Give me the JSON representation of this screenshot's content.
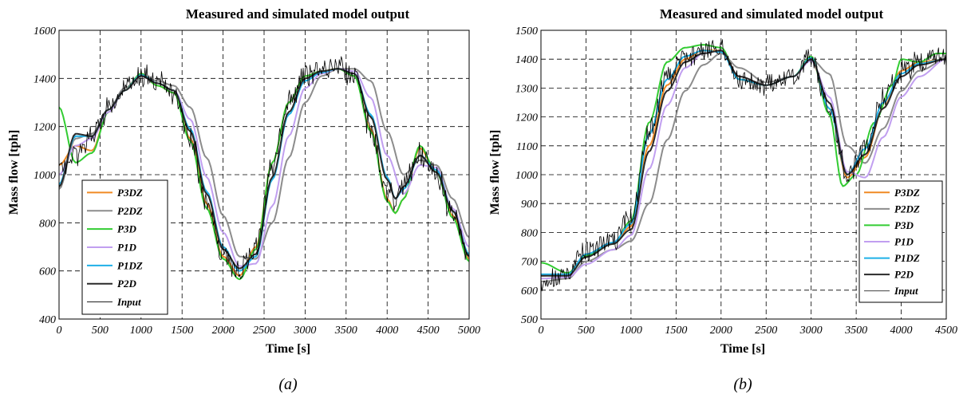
{
  "chart_data": [
    {
      "type": "line",
      "title": "Measured and simulated model output",
      "xlabel": "Time [s]",
      "ylabel": "Mass flow [tph]",
      "caption": "(a)",
      "xlim": [
        0,
        5000
      ],
      "ylim": [
        400,
        1600
      ],
      "xticks": [
        "0",
        "500",
        "1000",
        "1500",
        "2000",
        "2500",
        "3000",
        "3500",
        "4000",
        "4500",
        "5000"
      ],
      "yticks": [
        "400",
        "600",
        "800",
        "1000",
        "1200",
        "1400",
        "1600"
      ],
      "grid": true,
      "legend_position": "bottom-left",
      "series": [
        {
          "name": "P3DZ",
          "color": "#f08a24",
          "width": 2,
          "x": [
            0,
            200,
            400,
            600,
            800,
            1000,
            1200,
            1400,
            1600,
            1800,
            2000,
            2200,
            2400,
            2600,
            2800,
            3000,
            3200,
            3400,
            3600,
            3800,
            4000,
            4100,
            4200,
            4400,
            4600,
            4800,
            5000
          ],
          "y": [
            1040,
            1120,
            1100,
            1260,
            1350,
            1420,
            1370,
            1340,
            1150,
            880,
            660,
            580,
            700,
            1050,
            1300,
            1410,
            1430,
            1440,
            1410,
            1190,
            900,
            840,
            900,
            1110,
            1010,
            830,
            650
          ]
        },
        {
          "name": "P2DZ",
          "color": "#8c8c8c",
          "width": 2,
          "x": [
            0,
            200,
            400,
            600,
            800,
            1000,
            1200,
            1400,
            1600,
            1800,
            2000,
            2200,
            2400,
            2600,
            2800,
            3000,
            3200,
            3400,
            3600,
            3800,
            4000,
            4200,
            4400,
            4600,
            4800,
            5000
          ],
          "y": [
            940,
            1150,
            1170,
            1270,
            1360,
            1410,
            1390,
            1370,
            1280,
            1070,
            830,
            660,
            650,
            800,
            1070,
            1300,
            1410,
            1440,
            1440,
            1390,
            1180,
            1000,
            1060,
            1040,
            900,
            740
          ]
        },
        {
          "name": "P3D",
          "color": "#33cc33",
          "width": 2,
          "x": [
            0,
            200,
            400,
            600,
            800,
            1000,
            1200,
            1400,
            1600,
            1800,
            2000,
            2200,
            2400,
            2600,
            2800,
            3000,
            3200,
            3400,
            3600,
            3800,
            4000,
            4100,
            4200,
            4400,
            4600,
            4800,
            5000
          ],
          "y": [
            1280,
            1050,
            1090,
            1260,
            1350,
            1420,
            1370,
            1340,
            1140,
            860,
            650,
            565,
            690,
            1050,
            1300,
            1410,
            1430,
            1440,
            1410,
            1180,
            890,
            840,
            900,
            1120,
            1010,
            820,
            640
          ]
        },
        {
          "name": "P1D",
          "color": "#c19ff0",
          "width": 2,
          "x": [
            0,
            200,
            400,
            600,
            800,
            1000,
            1200,
            1400,
            1600,
            1800,
            2000,
            2200,
            2400,
            2600,
            2800,
            3000,
            3200,
            3400,
            3600,
            3800,
            4000,
            4200,
            4400,
            4600,
            4800,
            5000
          ],
          "y": [
            1000,
            1120,
            1150,
            1260,
            1350,
            1410,
            1380,
            1350,
            1230,
            990,
            760,
            620,
            630,
            870,
            1160,
            1360,
            1420,
            1440,
            1430,
            1320,
            1080,
            920,
            1040,
            1030,
            860,
            700
          ]
        },
        {
          "name": "P1DZ",
          "color": "#1fb0e8",
          "width": 2,
          "x": [
            0,
            200,
            400,
            600,
            800,
            1000,
            1200,
            1400,
            1600,
            1800,
            2000,
            2200,
            2400,
            2600,
            2800,
            3000,
            3200,
            3400,
            3600,
            3800,
            4000,
            4100,
            4200,
            4400,
            4600,
            4800,
            5000
          ],
          "y": [
            960,
            1160,
            1160,
            1270,
            1350,
            1415,
            1380,
            1350,
            1190,
            930,
            700,
            600,
            660,
            980,
            1250,
            1390,
            1425,
            1440,
            1420,
            1250,
            990,
            900,
            940,
            1080,
            1020,
            850,
            670
          ]
        },
        {
          "name": "P2D",
          "color": "#2a2a2a",
          "width": 2,
          "x": [
            0,
            200,
            400,
            600,
            800,
            1000,
            1200,
            1400,
            1600,
            1800,
            2000,
            2200,
            2400,
            2600,
            2800,
            3000,
            3200,
            3400,
            3600,
            3800,
            4000,
            4100,
            4200,
            4400,
            4600,
            4800,
            5000
          ],
          "y": [
            950,
            1170,
            1160,
            1270,
            1350,
            1410,
            1380,
            1350,
            1180,
            920,
            690,
            610,
            670,
            990,
            1260,
            1400,
            1430,
            1440,
            1420,
            1240,
            980,
            900,
            950,
            1080,
            1010,
            850,
            660
          ]
        },
        {
          "name": "Input",
          "color": "#000000",
          "width": 0.8,
          "noise": 45,
          "x": [
            0,
            200,
            400,
            600,
            800,
            1000,
            1200,
            1400,
            1600,
            1800,
            2000,
            2200,
            2400,
            2600,
            2800,
            3000,
            3200,
            3400,
            3600,
            3800,
            4000,
            4100,
            4200,
            4400,
            4600,
            4800,
            5000
          ],
          "y": [
            1010,
            1080,
            1160,
            1280,
            1360,
            1410,
            1380,
            1340,
            1150,
            890,
            670,
            600,
            700,
            1030,
            1300,
            1410,
            1440,
            1450,
            1410,
            1190,
            920,
            900,
            960,
            1090,
            1000,
            830,
            650
          ]
        }
      ]
    },
    {
      "type": "line",
      "title": "Measured and simulated model output",
      "xlabel": "Time [s]",
      "ylabel": "Mass flow [tph]",
      "caption": "(b)",
      "xlim": [
        0,
        4500
      ],
      "ylim": [
        500,
        1500
      ],
      "xticks": [
        "0",
        "500",
        "1000",
        "1500",
        "2000",
        "2500",
        "3000",
        "3500",
        "4000",
        "4500"
      ],
      "yticks": [
        "500",
        "600",
        "700",
        "800",
        "900",
        "1000",
        "1100",
        "1200",
        "1300",
        "1400",
        "1500"
      ],
      "grid": true,
      "legend_position": "bottom-right",
      "series": [
        {
          "name": "P3DZ",
          "color": "#f08a24",
          "width": 2,
          "x": [
            0,
            300,
            500,
            800,
            1000,
            1200,
            1400,
            1600,
            1800,
            2000,
            2200,
            2500,
            2800,
            3000,
            3200,
            3400,
            3600,
            3800,
            4000,
            4200,
            4500
          ],
          "y": [
            650,
            655,
            720,
            760,
            820,
            1100,
            1310,
            1400,
            1430,
            1430,
            1340,
            1310,
            1340,
            1400,
            1230,
            990,
            1060,
            1230,
            1360,
            1390,
            1400
          ]
        },
        {
          "name": "P2DZ",
          "color": "#8c8c8c",
          "width": 2,
          "x": [
            0,
            300,
            500,
            800,
            1000,
            1200,
            1400,
            1600,
            1800,
            2000,
            2200,
            2500,
            2800,
            3000,
            3200,
            3400,
            3600,
            3800,
            4000,
            4200,
            4500
          ],
          "y": [
            630,
            640,
            700,
            740,
            770,
            900,
            1120,
            1290,
            1380,
            1420,
            1370,
            1320,
            1340,
            1400,
            1350,
            1100,
            1040,
            1160,
            1290,
            1360,
            1400
          ]
        },
        {
          "name": "P3D",
          "color": "#33cc33",
          "width": 2,
          "x": [
            0,
            300,
            500,
            800,
            1000,
            1200,
            1400,
            1600,
            1800,
            2000,
            2200,
            2500,
            2800,
            3000,
            3200,
            3350,
            3500,
            3700,
            3900,
            4000,
            4200,
            4400,
            4500
          ],
          "y": [
            695,
            660,
            720,
            760,
            840,
            1180,
            1390,
            1440,
            1450,
            1440,
            1330,
            1310,
            1340,
            1410,
            1210,
            960,
            1000,
            1180,
            1310,
            1400,
            1390,
            1420,
            1420
          ]
        },
        {
          "name": "P1D",
          "color": "#c19ff0",
          "width": 2,
          "x": [
            0,
            300,
            500,
            800,
            1000,
            1200,
            1400,
            1600,
            1800,
            2000,
            2200,
            2500,
            2800,
            3000,
            3200,
            3400,
            3600,
            3800,
            4000,
            4200,
            4500
          ],
          "y": [
            640,
            645,
            690,
            740,
            790,
            1020,
            1240,
            1370,
            1420,
            1430,
            1340,
            1310,
            1340,
            1395,
            1270,
            1010,
            990,
            1130,
            1270,
            1340,
            1400
          ]
        },
        {
          "name": "P1DZ",
          "color": "#1fb0e8",
          "width": 2,
          "x": [
            0,
            300,
            500,
            800,
            1000,
            1200,
            1400,
            1600,
            1800,
            2000,
            2200,
            2500,
            2800,
            3000,
            3200,
            3400,
            3600,
            3800,
            4000,
            4200,
            4500
          ],
          "y": [
            655,
            655,
            725,
            765,
            830,
            1140,
            1330,
            1410,
            1430,
            1425,
            1330,
            1310,
            1340,
            1405,
            1230,
            1000,
            1090,
            1250,
            1350,
            1385,
            1400
          ]
        },
        {
          "name": "P2D",
          "color": "#2a2a2a",
          "width": 2,
          "x": [
            0,
            300,
            500,
            800,
            1000,
            1200,
            1400,
            1600,
            1800,
            2000,
            2200,
            2500,
            2800,
            3000,
            3200,
            3400,
            3600,
            3800,
            4000,
            4200,
            4500
          ],
          "y": [
            650,
            650,
            715,
            760,
            810,
            1080,
            1290,
            1390,
            1420,
            1430,
            1340,
            1310,
            1340,
            1400,
            1250,
            1000,
            1070,
            1230,
            1340,
            1380,
            1400
          ]
        },
        {
          "name": "Input",
          "color": "#000000",
          "width": 0.8,
          "noise": 35,
          "x": [
            0,
            300,
            500,
            800,
            1000,
            1200,
            1400,
            1600,
            1800,
            2000,
            2200,
            2500,
            2800,
            3000,
            3200,
            3400,
            3600,
            3800,
            4000,
            4200,
            4500
          ],
          "y": [
            620,
            650,
            740,
            770,
            850,
            1150,
            1340,
            1400,
            1430,
            1440,
            1330,
            1310,
            1340,
            1410,
            1220,
            1000,
            1090,
            1260,
            1360,
            1390,
            1410
          ]
        }
      ]
    }
  ]
}
